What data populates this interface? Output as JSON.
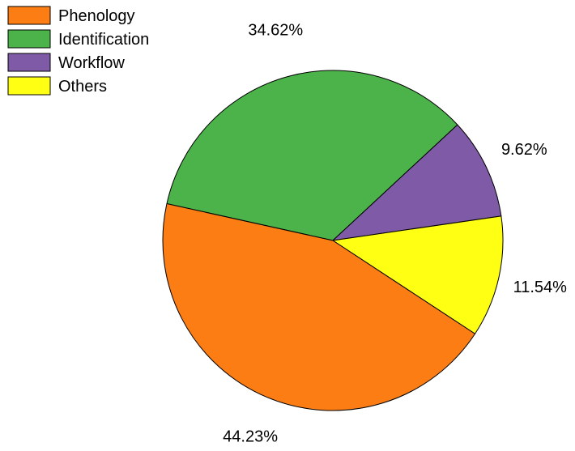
{
  "chart_data": {
    "type": "pie",
    "categories": [
      "Phenology",
      "Identification",
      "Workflow",
      "Others"
    ],
    "values": [
      44.23,
      34.62,
      9.62,
      11.54
    ],
    "value_labels": [
      "44.23%",
      "34.62%",
      "9.62%",
      "11.54%"
    ],
    "colors": [
      "#fb7d14",
      "#4cb34a",
      "#7f5ba7",
      "#ffff14"
    ],
    "title": "",
    "legend_position": "top-left"
  }
}
